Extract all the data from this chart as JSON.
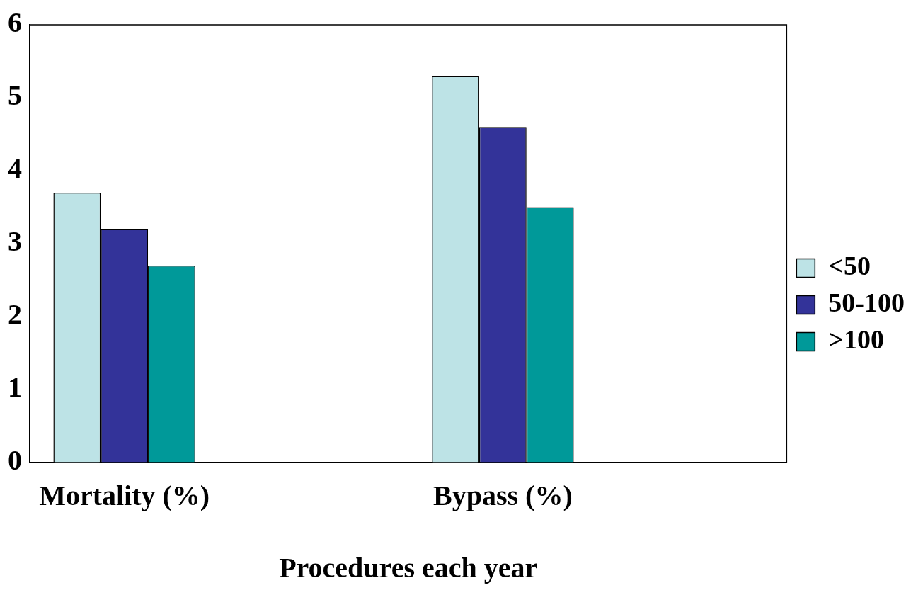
{
  "chart_data": {
    "type": "bar",
    "xlabel": "Procedures each year",
    "categories": [
      "Mortality (%)",
      null,
      "Bypass (%)",
      null
    ],
    "series": [
      {
        "name": "<50",
        "color": "#bde3e6",
        "values": [
          3.7,
          null,
          5.3,
          null
        ]
      },
      {
        "name": "50-100",
        "color": "#333399",
        "values": [
          3.2,
          null,
          4.6,
          null
        ]
      },
      {
        "name": ">100",
        "color": "#009999",
        "values": [
          2.7,
          null,
          3.5,
          null
        ]
      }
    ],
    "ylim": [
      0,
      6
    ],
    "yticks": [
      0,
      1,
      2,
      3,
      4,
      5,
      6
    ],
    "grid": false,
    "legend": "right"
  }
}
